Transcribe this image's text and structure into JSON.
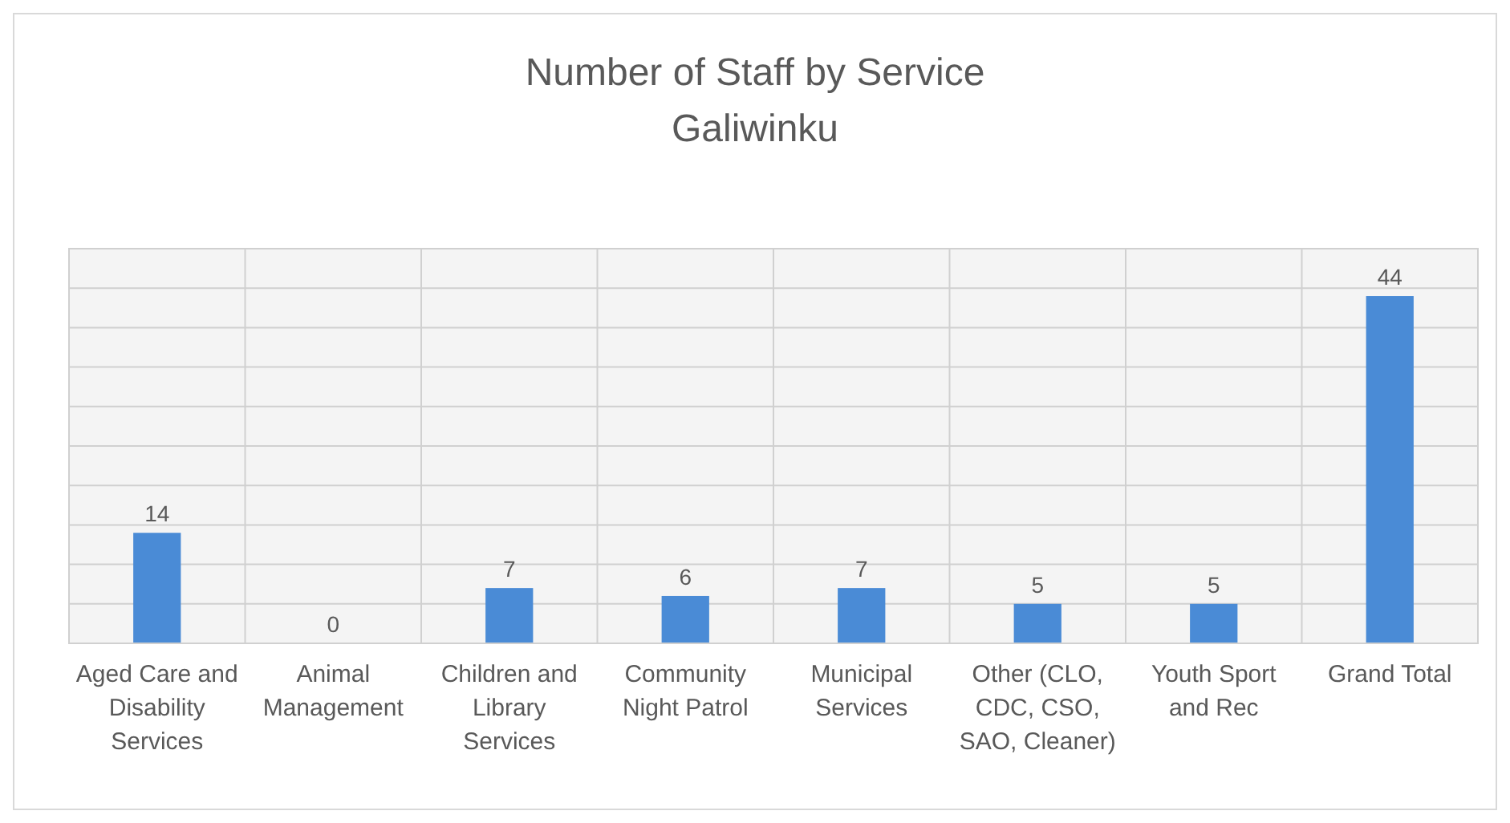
{
  "chart_data": {
    "type": "bar",
    "title": "Number of Staff by Service",
    "subtitle": "Galiwinku",
    "categories": [
      "Aged Care and Disability Services",
      "Animal Management",
      "Children and Library Services",
      "Community Night Patrol",
      "Municipal Services",
      "Other (CLO, CDC, CSO, SAO, Cleaner)",
      "Youth Sport and Rec",
      "Grand Total"
    ],
    "values": [
      14,
      0,
      7,
      6,
      7,
      5,
      5,
      44
    ],
    "color": "#4a8bd6",
    "ylim": [
      0,
      50
    ],
    "yticks": [
      0,
      5,
      10,
      15,
      20,
      25,
      30,
      35,
      40,
      45,
      50
    ],
    "tick_labels": "x",
    "grid": true,
    "data_labels": true
  }
}
